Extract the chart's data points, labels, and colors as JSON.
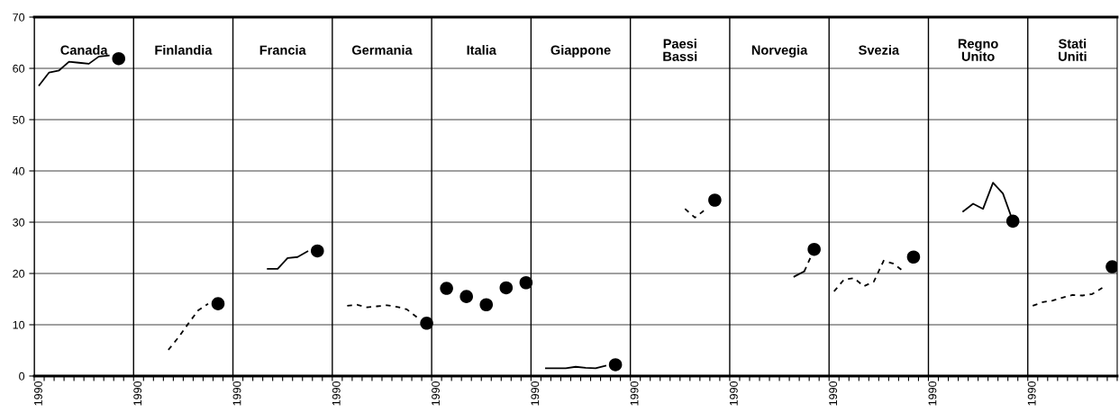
{
  "chart_data": {
    "type": "line",
    "ylim": [
      0,
      70
    ],
    "yticks": [
      0,
      10,
      20,
      30,
      40,
      50,
      60,
      70
    ],
    "grid": true,
    "annotations": [
      "Canada",
      "Finlandia",
      "Francia",
      "Germania",
      "Italia",
      "Giappone",
      "Paesi Bassi",
      "Norvegia",
      "Svezia",
      "Regno Unito",
      "Stati Uniti"
    ],
    "categories": [
      "1990",
      null,
      null,
      null,
      null,
      null,
      null,
      null,
      null,
      null,
      "1990",
      null,
      null,
      null,
      null,
      null,
      null,
      null,
      null,
      null,
      "1990",
      null,
      null,
      null,
      null,
      null,
      null,
      null,
      null,
      null,
      "1990",
      null,
      null,
      null,
      null,
      null,
      null,
      null,
      null,
      null,
      "1990",
      null,
      null,
      null,
      null,
      null,
      null,
      null,
      null,
      null,
      "1990",
      null,
      null,
      null,
      null,
      null,
      null,
      null,
      null,
      null,
      "1990",
      null,
      null,
      null,
      null,
      null,
      null,
      null,
      null,
      null,
      "1990",
      null,
      null,
      null,
      null,
      null,
      null,
      null,
      null,
      null,
      "1990",
      null,
      null,
      null,
      null,
      null,
      null,
      null,
      null,
      null,
      "1990",
      null,
      null,
      null,
      null,
      null,
      null,
      null,
      null,
      null,
      "1990",
      null,
      null,
      null,
      null,
      null,
      null,
      null,
      null
    ],
    "series": [
      {
        "color": "#000000",
        "line_style": "solid",
        "values": [
          56.7,
          59.2,
          59.6,
          61.3,
          61.1,
          60.9,
          62.3,
          62.5,
          null,
          null,
          null,
          null,
          null,
          null,
          null,
          null,
          null,
          null,
          null,
          null,
          null,
          null,
          null,
          null,
          null,
          null,
          null,
          null,
          null,
          null,
          null,
          null,
          null,
          null,
          null,
          null,
          null,
          null,
          null,
          null,
          null,
          null,
          null,
          null,
          null,
          null,
          null,
          null,
          null,
          null,
          null,
          null,
          null,
          null,
          null,
          null,
          null,
          null,
          null,
          null,
          null,
          null,
          null,
          null,
          null,
          null,
          null,
          null,
          null,
          null,
          null,
          null,
          null,
          null,
          null,
          null,
          null,
          null,
          null,
          null,
          null,
          null,
          null,
          null,
          null,
          null,
          null,
          null,
          null,
          null,
          null,
          null,
          null,
          null,
          null,
          null,
          null,
          null,
          null,
          null,
          null,
          null,
          null,
          null,
          null,
          null,
          null,
          null,
          null
        ]
      },
      {
        "color": "#000000",
        "line_style": "dashed",
        "values": [
          null,
          null,
          null,
          null,
          null,
          null,
          null,
          null,
          null,
          null,
          null,
          null,
          null,
          5.1,
          7.5,
          10.2,
          12.8,
          14.1,
          null,
          null,
          null,
          null,
          null,
          null,
          null,
          null,
          null,
          null,
          null,
          null,
          null,
          null,
          null,
          null,
          null,
          null,
          null,
          null,
          null,
          null,
          null,
          null,
          null,
          null,
          null,
          null,
          null,
          null,
          null,
          null,
          null,
          null,
          null,
          null,
          null,
          null,
          null,
          null,
          null,
          null,
          null,
          null,
          null,
          null,
          null,
          null,
          null,
          null,
          null,
          null,
          null,
          null,
          null,
          null,
          null,
          null,
          null,
          null,
          null,
          null,
          null,
          null,
          null,
          null,
          null,
          null,
          null,
          null,
          null,
          null,
          null,
          null,
          null,
          null,
          null,
          null,
          null,
          null,
          null,
          null,
          null,
          null,
          null,
          null,
          null,
          null,
          null,
          null,
          null
        ]
      },
      {
        "color": "#000000",
        "line_style": "solid",
        "values": [
          null,
          null,
          null,
          null,
          null,
          null,
          null,
          null,
          null,
          null,
          null,
          null,
          null,
          null,
          null,
          null,
          null,
          null,
          null,
          null,
          null,
          null,
          null,
          20.9,
          20.9,
          23.0,
          23.2,
          24.3,
          null,
          null,
          null,
          null,
          null,
          null,
          null,
          null,
          null,
          null,
          null,
          null,
          null,
          null,
          null,
          null,
          null,
          null,
          null,
          null,
          null,
          null,
          null,
          null,
          null,
          null,
          null,
          null,
          null,
          null,
          null,
          null,
          null,
          null,
          null,
          null,
          null,
          null,
          null,
          null,
          null,
          null,
          null,
          null,
          null,
          null,
          null,
          null,
          null,
          null,
          null,
          null,
          null,
          null,
          null,
          null,
          null,
          null,
          null,
          null,
          null,
          null,
          null,
          null,
          null,
          null,
          null,
          null,
          null,
          null,
          null,
          null,
          null,
          null,
          null,
          null,
          null,
          null,
          null,
          null,
          null
        ]
      },
      {
        "color": "#000000",
        "line_style": "dashed",
        "values": [
          null,
          null,
          null,
          null,
          null,
          null,
          null,
          null,
          null,
          null,
          null,
          null,
          null,
          null,
          null,
          null,
          null,
          null,
          null,
          null,
          null,
          null,
          null,
          null,
          null,
          null,
          null,
          null,
          null,
          null,
          null,
          13.7,
          13.9,
          13.4,
          13.6,
          13.8,
          13.5,
          13.0,
          11.5,
          null,
          null,
          null,
          null,
          null,
          null,
          null,
          null,
          null,
          null,
          null,
          null,
          null,
          null,
          null,
          null,
          null,
          null,
          null,
          null,
          null,
          null,
          null,
          null,
          null,
          null,
          null,
          null,
          null,
          null,
          null,
          null,
          null,
          null,
          null,
          null,
          null,
          null,
          null,
          null,
          null,
          null,
          null,
          null,
          null,
          null,
          null,
          null,
          null,
          null,
          null,
          null,
          null,
          null,
          null,
          null,
          null,
          null,
          null,
          null,
          null,
          null,
          null,
          null,
          null,
          null,
          null,
          null,
          null,
          null
        ]
      },
      {
        "type": "scatter",
        "color": "#000000",
        "marker": "circle",
        "values": [
          null,
          null,
          null,
          null,
          null,
          null,
          null,
          null,
          null,
          null,
          null,
          null,
          null,
          null,
          null,
          null,
          null,
          null,
          null,
          null,
          null,
          null,
          null,
          null,
          null,
          null,
          null,
          null,
          null,
          null,
          null,
          null,
          null,
          null,
          null,
          null,
          null,
          null,
          null,
          null,
          null,
          17.1,
          null,
          15.5,
          null,
          13.9,
          null,
          17.2,
          null,
          18.2,
          null,
          null,
          null,
          null,
          null,
          null,
          null,
          null,
          null,
          null,
          null,
          null,
          null,
          null,
          null,
          null,
          null,
          null,
          null,
          null,
          null,
          null,
          null,
          null,
          null,
          null,
          null,
          null,
          null,
          null,
          null,
          null,
          null,
          null,
          null,
          null,
          null,
          null,
          null,
          null,
          null,
          null,
          null,
          null,
          null,
          null,
          null,
          null,
          null,
          null,
          null,
          null,
          null,
          null,
          null,
          null,
          null,
          null,
          null
        ]
      },
      {
        "color": "#000000",
        "line_style": "solid",
        "values": [
          null,
          null,
          null,
          null,
          null,
          null,
          null,
          null,
          null,
          null,
          null,
          null,
          null,
          null,
          null,
          null,
          null,
          null,
          null,
          null,
          null,
          null,
          null,
          null,
          null,
          null,
          null,
          null,
          null,
          null,
          null,
          null,
          null,
          null,
          null,
          null,
          null,
          null,
          null,
          null,
          null,
          null,
          null,
          null,
          null,
          null,
          null,
          null,
          null,
          null,
          null,
          1.5,
          1.5,
          1.5,
          1.8,
          1.6,
          1.5,
          2.0,
          null,
          null,
          null,
          null,
          null,
          null,
          null,
          null,
          null,
          null,
          null,
          null,
          null,
          null,
          null,
          null,
          null,
          null,
          null,
          null,
          null,
          null,
          null,
          null,
          null,
          null,
          null,
          null,
          null,
          null,
          null,
          null,
          null,
          null,
          null,
          null,
          null,
          null,
          null,
          null,
          null,
          null,
          null,
          null,
          null,
          null,
          null,
          null,
          null,
          null,
          null
        ]
      },
      {
        "color": "#000000",
        "line_style": "dashed",
        "values": [
          null,
          null,
          null,
          null,
          null,
          null,
          null,
          null,
          null,
          null,
          null,
          null,
          null,
          null,
          null,
          null,
          null,
          null,
          null,
          null,
          null,
          null,
          null,
          null,
          null,
          null,
          null,
          null,
          null,
          null,
          null,
          null,
          null,
          null,
          null,
          null,
          null,
          null,
          null,
          null,
          null,
          null,
          null,
          null,
          null,
          null,
          null,
          null,
          null,
          null,
          null,
          null,
          null,
          null,
          null,
          null,
          null,
          null,
          null,
          null,
          null,
          null,
          null,
          null,
          null,
          32.6,
          30.9,
          32.4,
          null,
          null,
          null,
          null,
          null,
          null,
          null,
          null,
          null,
          null,
          null,
          null,
          null,
          null,
          null,
          null,
          null,
          null,
          null,
          null,
          null,
          null,
          null,
          null,
          null,
          null,
          null,
          null,
          null,
          null,
          null,
          null,
          null,
          null,
          null,
          null,
          null,
          null,
          null,
          null,
          null
        ]
      },
      {
        "color": "#000000",
        "line_style": "solid",
        "values": [
          null,
          null,
          null,
          null,
          null,
          null,
          null,
          null,
          null,
          null,
          null,
          null,
          null,
          null,
          null,
          null,
          null,
          null,
          null,
          null,
          null,
          null,
          null,
          null,
          null,
          null,
          null,
          null,
          null,
          null,
          null,
          null,
          null,
          null,
          null,
          null,
          null,
          null,
          null,
          null,
          null,
          null,
          null,
          null,
          null,
          null,
          null,
          null,
          null,
          null,
          null,
          null,
          null,
          null,
          null,
          null,
          null,
          null,
          null,
          null,
          null,
          null,
          null,
          null,
          null,
          null,
          null,
          null,
          null,
          null,
          null,
          null,
          null,
          null,
          null,
          null,
          19.4,
          20.4,
          null,
          null,
          null,
          null,
          null,
          null,
          null,
          null,
          null,
          null,
          null,
          null,
          null,
          null,
          null,
          null,
          null,
          null,
          null,
          null,
          null,
          null,
          null,
          null,
          null,
          null,
          null,
          null,
          null,
          null,
          null
        ]
      },
      {
        "color": "#000000",
        "line_style": "dashed",
        "values": [
          null,
          null,
          null,
          null,
          null,
          null,
          null,
          null,
          null,
          null,
          null,
          null,
          null,
          null,
          null,
          null,
          null,
          null,
          null,
          null,
          null,
          null,
          null,
          null,
          null,
          null,
          null,
          null,
          null,
          null,
          null,
          null,
          null,
          null,
          null,
          null,
          null,
          null,
          null,
          null,
          null,
          null,
          null,
          null,
          null,
          null,
          null,
          null,
          null,
          null,
          null,
          null,
          null,
          null,
          null,
          null,
          null,
          null,
          null,
          null,
          null,
          null,
          null,
          null,
          null,
          null,
          null,
          null,
          null,
          null,
          null,
          null,
          null,
          null,
          null,
          null,
          null,
          20.4,
          24.7,
          null,
          null,
          null,
          null,
          null,
          null,
          null,
          null,
          null,
          null,
          null,
          null,
          null,
          null,
          null,
          null,
          null,
          null,
          null,
          null,
          null,
          null,
          null,
          null,
          null,
          null,
          null,
          null,
          null,
          null
        ]
      },
      {
        "color": "#000000",
        "line_style": "dashed",
        "values": [
          null,
          null,
          null,
          null,
          null,
          null,
          null,
          null,
          null,
          null,
          null,
          null,
          null,
          null,
          null,
          null,
          null,
          null,
          null,
          null,
          null,
          null,
          null,
          null,
          null,
          null,
          null,
          null,
          null,
          null,
          null,
          null,
          null,
          null,
          null,
          null,
          null,
          null,
          null,
          null,
          null,
          null,
          null,
          null,
          null,
          null,
          null,
          null,
          null,
          null,
          null,
          null,
          null,
          null,
          null,
          null,
          null,
          null,
          null,
          null,
          null,
          null,
          null,
          null,
          null,
          null,
          null,
          null,
          null,
          null,
          null,
          null,
          null,
          null,
          null,
          null,
          null,
          null,
          null,
          null,
          16.5,
          18.8,
          19.1,
          17.5,
          18.4,
          22.5,
          21.9,
          20.4,
          null,
          null,
          null,
          null,
          null,
          null,
          null,
          null,
          null,
          null,
          null,
          null,
          null,
          null,
          null,
          null,
          null,
          null,
          null,
          null,
          null
        ]
      },
      {
        "color": "#000000",
        "line_style": "solid",
        "values": [
          null,
          null,
          null,
          null,
          null,
          null,
          null,
          null,
          null,
          null,
          null,
          null,
          null,
          null,
          null,
          null,
          null,
          null,
          null,
          null,
          null,
          null,
          null,
          null,
          null,
          null,
          null,
          null,
          null,
          null,
          null,
          null,
          null,
          null,
          null,
          null,
          null,
          null,
          null,
          null,
          null,
          null,
          null,
          null,
          null,
          null,
          null,
          null,
          null,
          null,
          null,
          null,
          null,
          null,
          null,
          null,
          null,
          null,
          null,
          null,
          null,
          null,
          null,
          null,
          null,
          null,
          null,
          null,
          null,
          null,
          null,
          null,
          null,
          null,
          null,
          null,
          null,
          null,
          null,
          null,
          null,
          null,
          null,
          null,
          null,
          null,
          null,
          null,
          null,
          null,
          null,
          null,
          null,
          32.1,
          33.6,
          32.6,
          37.7,
          35.6,
          30.2,
          null,
          null,
          null,
          null,
          null,
          null,
          null,
          null,
          null,
          null
        ]
      },
      {
        "color": "#000000",
        "line_style": "dashed",
        "values": [
          null,
          null,
          null,
          null,
          null,
          null,
          null,
          null,
          null,
          null,
          null,
          null,
          null,
          null,
          null,
          null,
          null,
          null,
          null,
          null,
          null,
          null,
          null,
          null,
          null,
          null,
          null,
          null,
          null,
          null,
          null,
          null,
          null,
          null,
          null,
          null,
          null,
          null,
          null,
          null,
          null,
          null,
          null,
          null,
          null,
          null,
          null,
          null,
          null,
          null,
          null,
          null,
          null,
          null,
          null,
          null,
          null,
          null,
          null,
          null,
          null,
          null,
          null,
          null,
          null,
          null,
          null,
          null,
          null,
          null,
          null,
          null,
          null,
          null,
          null,
          null,
          null,
          null,
          null,
          null,
          null,
          null,
          null,
          null,
          null,
          null,
          null,
          null,
          null,
          null,
          null,
          null,
          null,
          null,
          null,
          null,
          null,
          null,
          null,
          null,
          13.7,
          14.4,
          14.7,
          15.3,
          15.8,
          15.7,
          16.0,
          17.2,
          null
        ]
      },
      {
        "type": "scatter",
        "color": "#000000",
        "marker": "circle",
        "values": [
          null,
          null,
          null,
          null,
          null,
          null,
          null,
          null,
          61.9,
          null,
          null,
          null,
          null,
          null,
          null,
          null,
          null,
          null,
          14.1,
          null,
          null,
          null,
          null,
          null,
          null,
          null,
          null,
          null,
          24.4,
          null,
          null,
          null,
          null,
          null,
          null,
          null,
          null,
          null,
          null,
          10.3,
          null,
          null,
          null,
          null,
          null,
          null,
          null,
          null,
          null,
          null,
          null,
          null,
          null,
          null,
          null,
          null,
          null,
          null,
          2.2,
          null,
          null,
          null,
          null,
          null,
          null,
          null,
          null,
          null,
          34.3,
          null,
          null,
          null,
          null,
          null,
          null,
          null,
          null,
          null,
          24.7,
          null,
          null,
          null,
          null,
          null,
          null,
          null,
          null,
          null,
          23.2,
          null,
          null,
          null,
          null,
          null,
          null,
          null,
          null,
          null,
          30.2,
          null,
          null,
          null,
          null,
          null,
          null,
          null,
          null,
          null,
          21.3
        ]
      }
    ]
  }
}
